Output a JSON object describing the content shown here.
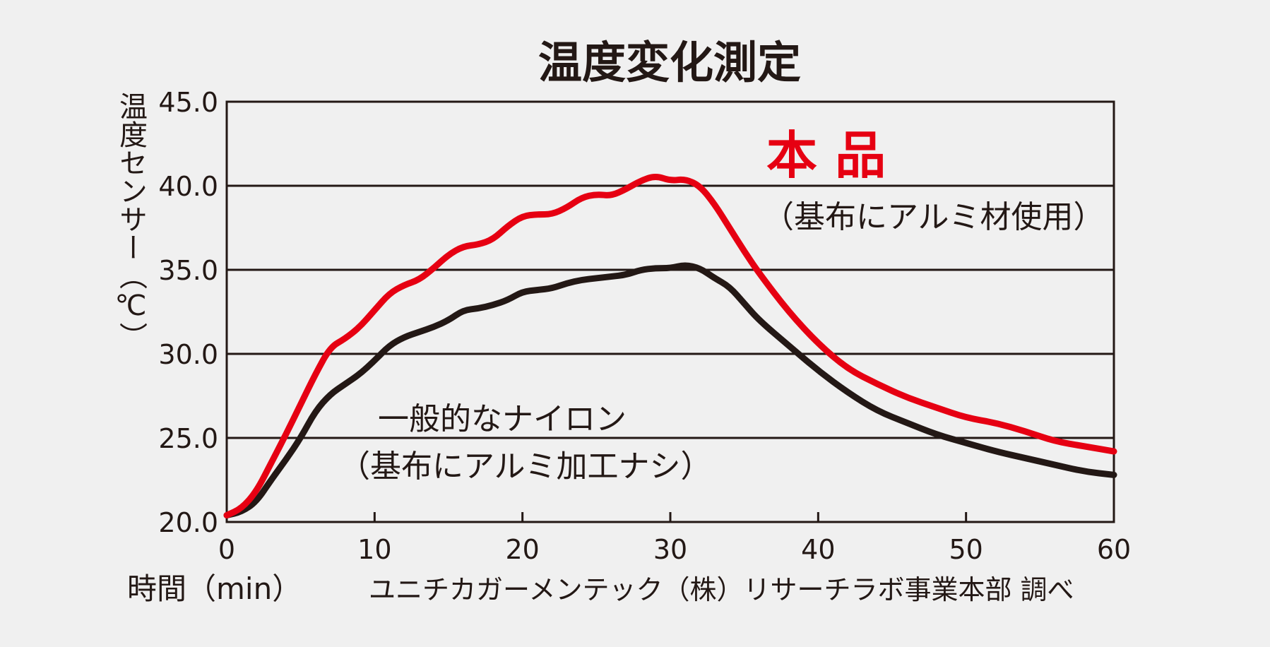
{
  "chart_data": {
    "type": "line",
    "title": "温度変化測定",
    "ylabel": "温度センサー（℃）",
    "xlabel": "時間（min）",
    "source_note": "ユニチカガーメンテック（株）リサーチラボ事業本部 調べ",
    "xlim": [
      0,
      60
    ],
    "ylim": [
      20.0,
      45.0
    ],
    "x_ticks": [
      "0",
      "10",
      "20",
      "30",
      "40",
      "50",
      "60"
    ],
    "y_ticks": [
      "20.0",
      "25.0",
      "30.0",
      "35.0",
      "40.0",
      "45.0"
    ],
    "grid": "horizontal",
    "series": [
      {
        "name": "本 品",
        "sub_label": "（基布にアルミ材使用）",
        "color": "#e60012",
        "x": [
          0,
          1,
          2,
          3,
          4,
          5,
          6,
          7,
          8,
          9,
          10,
          11,
          12,
          13,
          14,
          15,
          16,
          17,
          18,
          19,
          20,
          21,
          22,
          23,
          24,
          25,
          26,
          27,
          28,
          29,
          30,
          31,
          32,
          33,
          34,
          35,
          36,
          38,
          40,
          42,
          44,
          46,
          48,
          50,
          52,
          54,
          56,
          58,
          60
        ],
        "y": [
          20.4,
          20.8,
          21.8,
          23.5,
          25.2,
          27.0,
          28.8,
          30.4,
          30.9,
          31.6,
          32.6,
          33.6,
          34.1,
          34.4,
          35.1,
          35.9,
          36.4,
          36.5,
          36.8,
          37.6,
          38.2,
          38.3,
          38.3,
          38.7,
          39.3,
          39.5,
          39.4,
          39.8,
          40.3,
          40.6,
          40.3,
          40.4,
          40.0,
          38.9,
          37.5,
          36.1,
          34.8,
          32.5,
          30.6,
          29.1,
          28.2,
          27.4,
          26.8,
          26.2,
          25.9,
          25.4,
          24.8,
          24.5,
          24.2
        ]
      },
      {
        "name": "一般的なナイロン",
        "sub_label": "（基布にアルミ加工ナシ）",
        "color": "#231815",
        "x": [
          0,
          1,
          2,
          3,
          4,
          5,
          6,
          7,
          8,
          9,
          10,
          11,
          12,
          13,
          14,
          15,
          16,
          17,
          18,
          19,
          20,
          21,
          22,
          23,
          24,
          25,
          26,
          27,
          28,
          29,
          30,
          31,
          32,
          33,
          34,
          35,
          36,
          38,
          40,
          42,
          44,
          46,
          48,
          50,
          52,
          54,
          56,
          58,
          60
        ],
        "y": [
          20.4,
          20.6,
          21.2,
          22.5,
          23.7,
          25.0,
          26.6,
          27.6,
          28.2,
          28.8,
          29.6,
          30.5,
          31.0,
          31.3,
          31.6,
          32.0,
          32.6,
          32.7,
          32.9,
          33.2,
          33.7,
          33.8,
          33.9,
          34.2,
          34.4,
          34.5,
          34.6,
          34.7,
          35.0,
          35.1,
          35.1,
          35.3,
          35.1,
          34.5,
          34.0,
          33.0,
          32.0,
          30.5,
          29.0,
          27.7,
          26.6,
          25.9,
          25.2,
          24.7,
          24.2,
          23.8,
          23.4,
          23.0,
          22.8
        ]
      }
    ]
  }
}
